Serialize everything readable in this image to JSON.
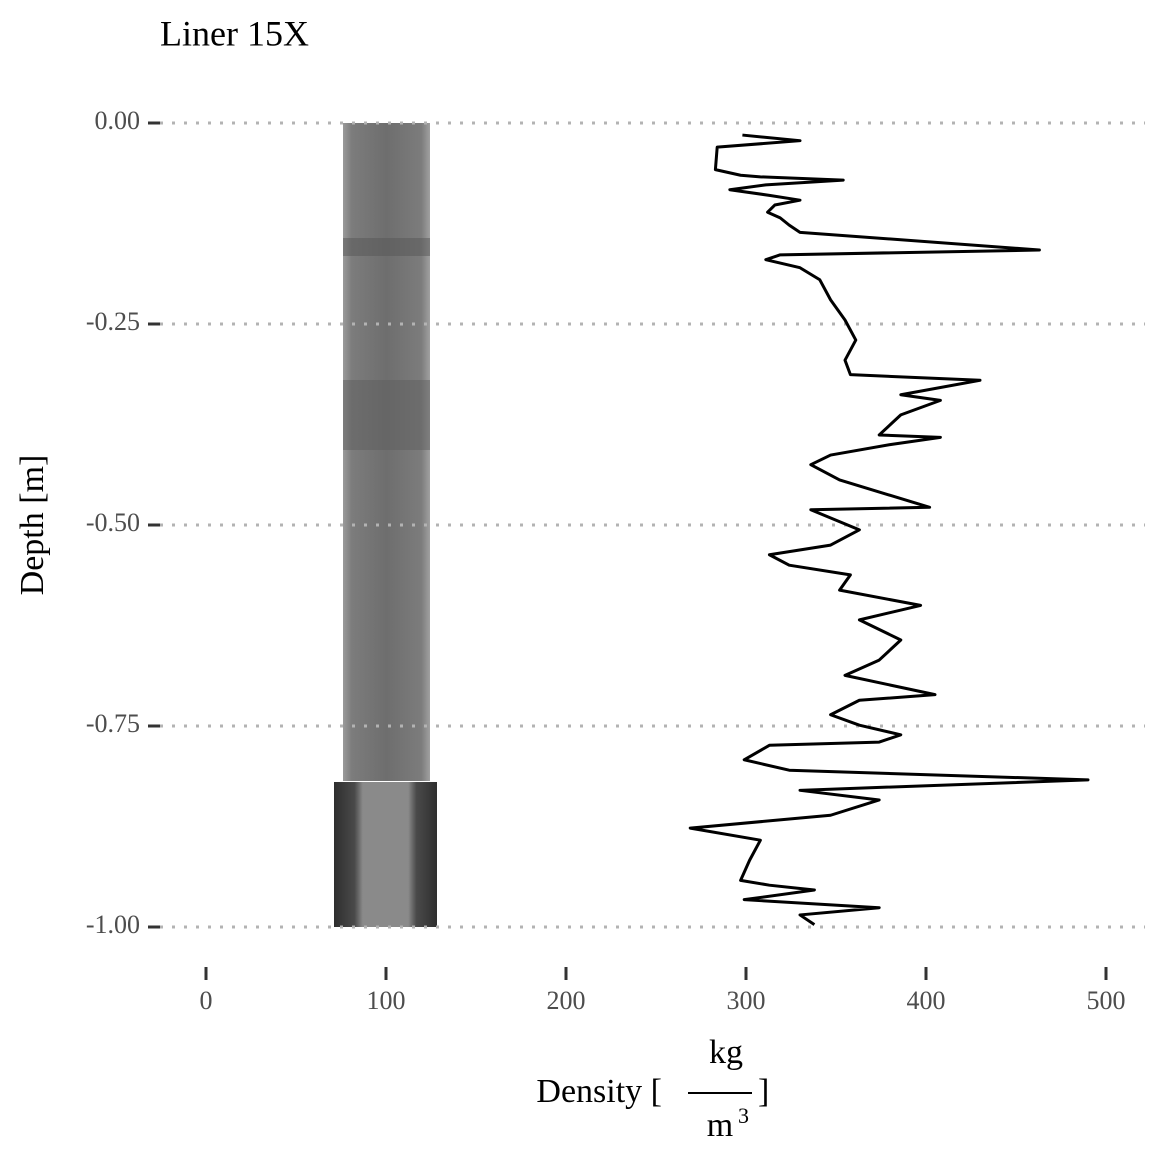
{
  "chart_data": {
    "type": "line",
    "title": "Liner 15X",
    "y_label": "Depth [m]",
    "x_label": {
      "prefix": "Density [",
      "numerator": "kg",
      "denominator": "m",
      "exponent": "3",
      "suffix": "]"
    },
    "x": [
      298,
      330,
      284,
      283,
      297,
      308,
      354,
      311,
      291,
      313,
      330,
      316,
      312,
      319,
      324,
      330,
      463,
      319,
      311,
      330,
      341,
      347,
      355,
      361,
      355,
      358,
      430,
      386,
      408,
      386,
      374,
      408,
      380,
      347,
      336,
      352,
      402,
      336,
      363,
      347,
      313,
      324,
      358,
      352,
      397,
      363,
      386,
      374,
      355,
      405,
      363,
      347,
      363,
      386,
      374,
      313,
      299,
      324,
      490,
      330,
      374,
      347,
      269,
      308,
      302,
      297,
      313,
      338,
      299,
      374,
      330,
      338
    ],
    "values": [
      -0.015,
      -0.022,
      -0.03,
      -0.058,
      -0.065,
      -0.067,
      -0.071,
      -0.077,
      -0.083,
      -0.09,
      -0.096,
      -0.102,
      -0.111,
      -0.118,
      -0.127,
      -0.136,
      -0.158,
      -0.164,
      -0.17,
      -0.18,
      -0.195,
      -0.22,
      -0.245,
      -0.27,
      -0.295,
      -0.313,
      -0.32,
      -0.338,
      -0.345,
      -0.363,
      -0.388,
      -0.391,
      -0.4,
      -0.413,
      -0.425,
      -0.444,
      -0.478,
      -0.481,
      -0.506,
      -0.525,
      -0.537,
      -0.55,
      -0.562,
      -0.581,
      -0.6,
      -0.618,
      -0.643,
      -0.668,
      -0.687,
      -0.711,
      -0.718,
      -0.736,
      -0.749,
      -0.761,
      -0.77,
      -0.774,
      -0.792,
      -0.805,
      -0.817,
      -0.83,
      -0.842,
      -0.861,
      -0.877,
      -0.892,
      -0.917,
      -0.942,
      -0.948,
      -0.954,
      -0.966,
      -0.976,
      -0.985,
      -0.997
    ],
    "color": "#000000",
    "xlim": [
      0,
      500
    ],
    "xticks": [
      0,
      100,
      200,
      300,
      400,
      500
    ],
    "ylim": [
      -1.0,
      0.0
    ],
    "yticks": [
      {
        "value": 0,
        "label": "0.00"
      },
      {
        "value": -0.25,
        "label": "-0.25"
      },
      {
        "value": -0.5,
        "label": "-0.50"
      },
      {
        "value": -0.75,
        "label": "-0.75"
      },
      {
        "value": -1.0,
        "label": "-1.00"
      }
    ],
    "grid": true
  }
}
